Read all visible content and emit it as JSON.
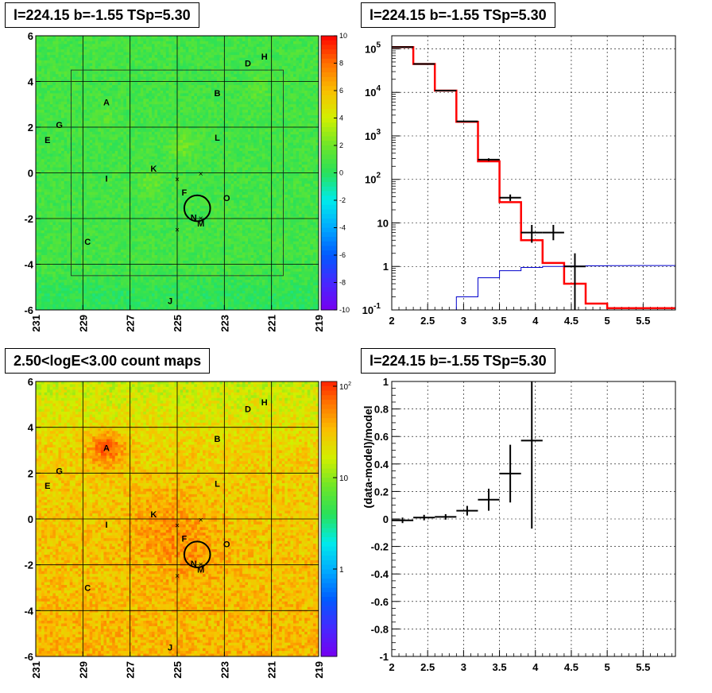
{
  "panels": {
    "tl_title": "l=224.15 b=-1.55 TSp=5.30",
    "tr_title": "l=224.15 b=-1.55 TSp=5.30",
    "bl_title": "2.50<logE<3.00 count maps",
    "br_title": "l=224.15 b=-1.55 TSp=5.30"
  },
  "colors": {
    "red": "#ff0000",
    "blue": "#0000cc",
    "black": "#000000"
  },
  "chart_data": [
    {
      "type": "heatmap",
      "title": "l=224.15 b=-1.55 TSp=5.30",
      "xticks": [
        "231",
        "229",
        "227",
        "225",
        "223",
        "221",
        "219"
      ],
      "yticks": [
        "6",
        "4",
        "2",
        "0",
        "-2",
        "-4",
        "-6"
      ],
      "xlim": [
        231,
        219
      ],
      "ylim": [
        -6,
        6
      ],
      "colorbar": {
        "min": -10,
        "max": 10,
        "ticks": [
          "10",
          "8",
          "6",
          "4",
          "2",
          "0",
          "-2",
          "-4",
          "-6",
          "-8",
          "-10"
        ]
      },
      "sources": [
        {
          "label": "A",
          "l": 228.0,
          "b": 3.1
        },
        {
          "label": "B",
          "l": 223.3,
          "b": 3.5
        },
        {
          "label": "C",
          "l": 228.8,
          "b": -3.0
        },
        {
          "label": "D",
          "l": 222.0,
          "b": 4.8
        },
        {
          "label": "E",
          "l": 230.5,
          "b": 1.45
        },
        {
          "label": "F",
          "l": 224.7,
          "b": -0.85
        },
        {
          "label": "G",
          "l": 230.0,
          "b": 2.1
        },
        {
          "label": "H",
          "l": 221.3,
          "b": 5.1
        },
        {
          "label": "I",
          "l": 228.0,
          "b": -0.25
        },
        {
          "label": "J",
          "l": 225.3,
          "b": -5.6
        },
        {
          "label": "K",
          "l": 226.0,
          "b": 0.2
        },
        {
          "label": "L",
          "l": 223.3,
          "b": 1.55
        },
        {
          "label": "M",
          "l": 224.0,
          "b": -2.2
        },
        {
          "label": "N",
          "l": 224.3,
          "b": -1.95
        },
        {
          "label": "O",
          "l": 222.9,
          "b": -1.1
        }
      ],
      "crosses": [
        {
          "l": 225.0,
          "b": -0.3
        },
        {
          "l": 224.0,
          "b": -0.05
        },
        {
          "l": 225.0,
          "b": -2.5
        },
        {
          "l": 224.0,
          "b": -2.0
        }
      ],
      "circle": {
        "l": 224.15,
        "b": -1.55,
        "r": 0.5
      },
      "roi_box": {
        "l1": 229.5,
        "l2": 220.5,
        "b1": -4.5,
        "b2": 4.5
      }
    },
    {
      "type": "line",
      "title": "l=224.15 b=-1.55 TSp=5.30",
      "log_y": true,
      "xlim": [
        2,
        5.95
      ],
      "ylim": [
        0.1,
        200000
      ],
      "xticks": [
        "2",
        "2.5",
        "3",
        "3.5",
        "4",
        "4.5",
        "5",
        "5.5"
      ],
      "yticks": [
        "10^-1",
        "1",
        "10",
        "10^2",
        "10^3",
        "10^4",
        "10^5"
      ],
      "series": [
        {
          "color": "red",
          "style": "step",
          "edges": [
            2,
            2.3,
            2.6,
            2.9,
            3.2,
            3.5,
            3.8,
            4.1,
            4.4,
            4.7,
            5.0,
            5.3,
            5.6,
            5.95
          ],
          "values": [
            110000,
            45000,
            11000,
            2100,
            260,
            30,
            4,
            1.2,
            0.4,
            0.14,
            0.11,
            0.11,
            0.11
          ]
        },
        {
          "color": "blue",
          "style": "step",
          "edges": [
            2.6,
            2.9,
            3.2,
            3.5,
            3.8,
            4.1,
            4.4,
            4.7,
            5.0,
            5.3,
            5.6,
            5.95
          ],
          "values": [
            0.1,
            0.2,
            0.55,
            0.8,
            0.95,
            1.0,
            1.02,
            1.03,
            1.04,
            1.05,
            1.05
          ]
        },
        {
          "color": "black",
          "style": "errorbar",
          "points": [
            {
              "x": 2.15,
              "xe": 0.15,
              "y": 110000
            },
            {
              "x": 2.45,
              "xe": 0.15,
              "y": 45000
            },
            {
              "x": 2.75,
              "xe": 0.15,
              "y": 11000
            },
            {
              "x": 3.05,
              "xe": 0.15,
              "y": 2150
            },
            {
              "x": 3.35,
              "xe": 0.15,
              "y": 285,
              "yl": 265,
              "yh": 305
            },
            {
              "x": 3.65,
              "xe": 0.15,
              "y": 38,
              "yl": 32,
              "yh": 45
            },
            {
              "x": 3.95,
              "xe": 0.15,
              "y": 6,
              "yl": 3.5,
              "yh": 9
            },
            {
              "x": 4.25,
              "xe": 0.15,
              "y": 6,
              "yl": 4,
              "yh": 9
            },
            {
              "x": 4.55,
              "xe": 0.15,
              "y": 1.0,
              "yl": 0.1,
              "yh": 2
            }
          ]
        }
      ]
    },
    {
      "type": "heatmap",
      "title": "2.50<logE<3.00 count maps",
      "xticks": [
        "231",
        "229",
        "227",
        "225",
        "223",
        "221",
        "219"
      ],
      "yticks": [
        "6",
        "4",
        "2",
        "0",
        "-2",
        "-4",
        "-6"
      ],
      "xlim": [
        231,
        219
      ],
      "ylim": [
        -6,
        6
      ],
      "colorbar": {
        "log": true,
        "ticks": [
          "10^2",
          "10",
          "1"
        ]
      }
    },
    {
      "type": "scatter",
      "title": "l=224.15 b=-1.55 TSp=5.30",
      "ylabel": "(data-model)/model",
      "xlim": [
        2,
        5.95
      ],
      "ylim": [
        -1,
        1
      ],
      "xticks": [
        "2",
        "2.5",
        "3",
        "3.5",
        "4",
        "4.5",
        "5",
        "5.5"
      ],
      "yticks": [
        "1",
        "0.8",
        "0.6",
        "0.4",
        "0.2",
        "0",
        "-0.2",
        "-0.4",
        "-0.6",
        "-0.8",
        "-1"
      ],
      "points": [
        {
          "x": 2.15,
          "xe": 0.15,
          "y": -0.01,
          "ye": 0.02
        },
        {
          "x": 2.45,
          "xe": 0.15,
          "y": 0.01,
          "ye": 0.02
        },
        {
          "x": 2.75,
          "xe": 0.15,
          "y": 0.015,
          "ye": 0.02
        },
        {
          "x": 3.05,
          "xe": 0.15,
          "y": 0.06,
          "ye": 0.035
        },
        {
          "x": 3.35,
          "xe": 0.15,
          "y": 0.14,
          "ye": 0.08
        },
        {
          "x": 3.65,
          "xe": 0.15,
          "y": 0.33,
          "ye": 0.21
        },
        {
          "x": 3.95,
          "xe": 0.15,
          "y": 0.57,
          "ye": 0.64
        }
      ]
    }
  ]
}
